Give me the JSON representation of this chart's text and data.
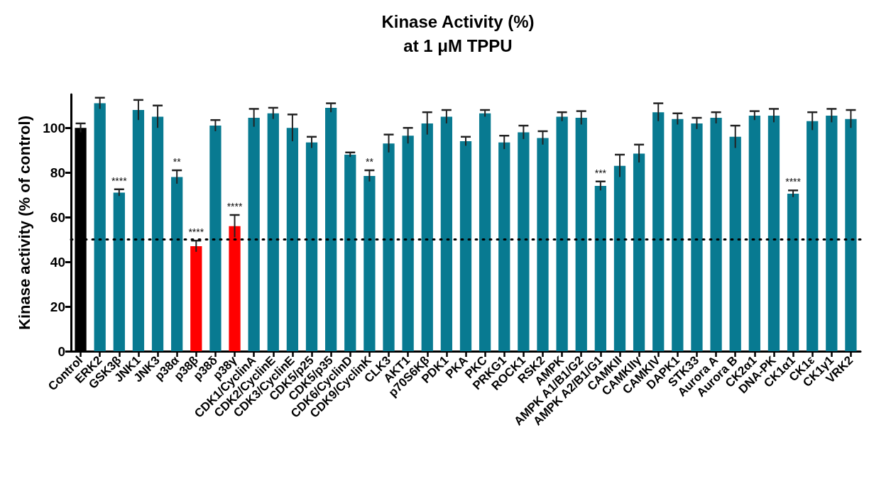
{
  "chart_data": {
    "type": "bar",
    "title": "Kinase Activity (%)\nat 1 μM TPPU",
    "ylabel": "Kinase activity (% of control)",
    "categories": [
      "Control",
      "ERK2",
      "GSK3β",
      "JNK1",
      "JNK3",
      "p38α",
      "p38β",
      "p38δ",
      "p38γ",
      "CDK1/CyclinA",
      "CDK2/CyclinE",
      "CDK3/CyclinE",
      "CDK5/p25",
      "CDK5/p35",
      "CDK6/CyclinD",
      "CDK9/CyclinK",
      "CLK3",
      "AKT1",
      "p70S6Kβ",
      "PDK1",
      "PKA",
      "PKC",
      "PRKG1",
      "ROCK1",
      "RSK2",
      "AMPK",
      "AMPK A1/B1/G2",
      "AMPK A2/B1/G1",
      "CAMKII",
      "CAMKIIγ",
      "CAMKIV",
      "DAPK1",
      "STK33",
      "Aurora A",
      "Aurora B",
      "CK2α1",
      "DNA-PK",
      "CK1α1",
      "CK1ε",
      "CK1γ1",
      "VRK2"
    ],
    "values": [
      100,
      111,
      71,
      108,
      105,
      78,
      47,
      101,
      56,
      104.5,
      106.5,
      100,
      93.5,
      109,
      88,
      78.5,
      93,
      96.5,
      102,
      105,
      94,
      106.5,
      93.5,
      98,
      95.5,
      105,
      104.5,
      74,
      83,
      88.5,
      107,
      104,
      102,
      104.5,
      96,
      105.5,
      105.5,
      70.5,
      103,
      105.5,
      104
    ],
    "errors": [
      2,
      2.5,
      1.5,
      4.5,
      5,
      3,
      2.5,
      2.5,
      5,
      4,
      2.5,
      6,
      2.5,
      2,
      1,
      2.5,
      4,
      3.5,
      5,
      3,
      2,
      1.5,
      3,
      3,
      3,
      2,
      3,
      2,
      5,
      4,
      4,
      2.5,
      2.5,
      2.5,
      5,
      2,
      3,
      1.5,
      4,
      3,
      4
    ],
    "colors": [
      "#000000",
      "#087a91",
      "#087a91",
      "#087a91",
      "#087a91",
      "#087a91",
      "#ff0000",
      "#087a91",
      "#ff0000",
      "#087a91",
      "#087a91",
      "#087a91",
      "#087a91",
      "#087a91",
      "#087a91",
      "#087a91",
      "#087a91",
      "#087a91",
      "#087a91",
      "#087a91",
      "#087a91",
      "#087a91",
      "#087a91",
      "#087a91",
      "#087a91",
      "#087a91",
      "#087a91",
      "#087a91",
      "#087a91",
      "#087a91",
      "#087a91",
      "#087a91",
      "#087a91",
      "#087a91",
      "#087a91",
      "#087a91",
      "#087a91",
      "#087a91",
      "#087a91",
      "#087a91",
      "#087a91"
    ],
    "annotations": [
      {
        "text": "****",
        "x": "GSK3β",
        "y": 72.5
      },
      {
        "text": "**",
        "x": "p38α",
        "y": 81
      },
      {
        "text": "****",
        "x": "p38β",
        "y": 49.5
      },
      {
        "text": "****",
        "x": "p38γ",
        "y": 61
      },
      {
        "text": "**",
        "x": "CDK9/CyclinK",
        "y": 81
      },
      {
        "text": "***",
        "x": "AMPK A2/B1/G1",
        "y": 76
      },
      {
        "text": "****",
        "x": "CK1α1",
        "y": 72
      }
    ],
    "ref_lines": [
      {
        "axis": "y",
        "value": 50,
        "color": "#000000",
        "line_style": "dotted"
      }
    ],
    "ylim": [
      0,
      115
    ],
    "yticks": [
      0,
      20,
      40,
      60,
      80,
      100
    ],
    "grid": false
  }
}
